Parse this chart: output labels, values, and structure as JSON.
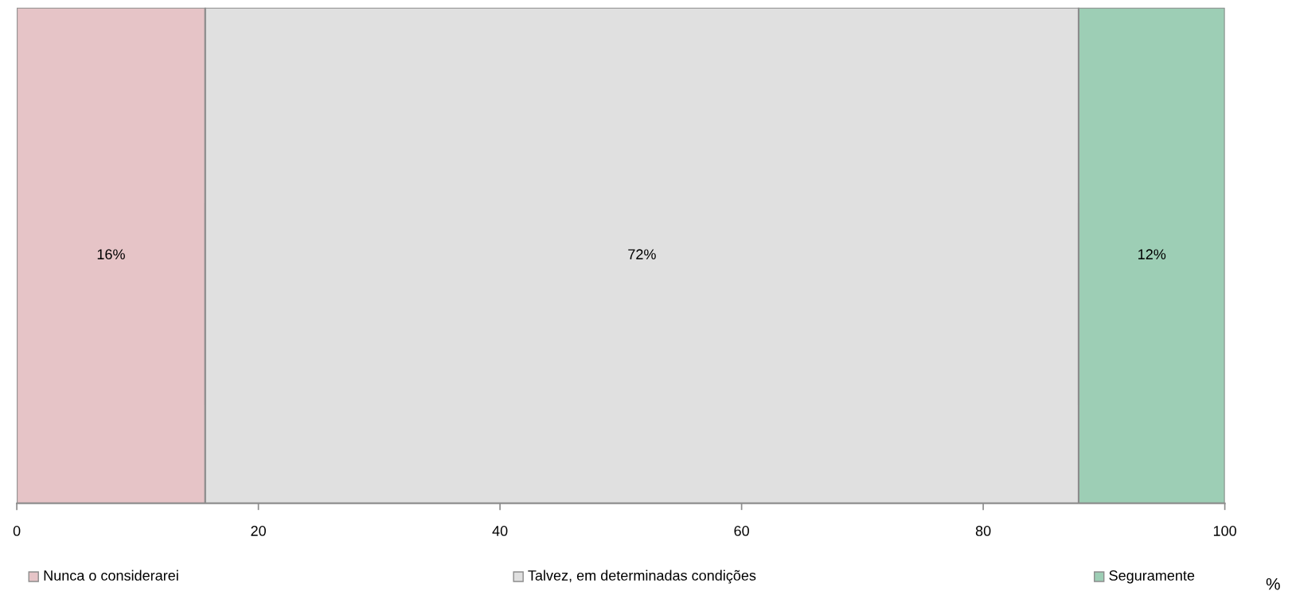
{
  "chart_data": {
    "type": "bar",
    "orientation": "horizontal",
    "stacked": true,
    "categories": [
      null
    ],
    "series": [
      {
        "name": "Nunca o considerarei",
        "color": "#e6c4c7",
        "values": [
          15.6
        ],
        "value_labels": [
          "16%"
        ]
      },
      {
        "name": "Talvez, em determinadas condições",
        "color": "#e0e0e0",
        "values": [
          72.3
        ],
        "value_labels": [
          "72%"
        ]
      },
      {
        "name": "Seguramente",
        "color": "#9dceb5",
        "values": [
          12.1
        ],
        "value_labels": [
          "12%"
        ]
      }
    ],
    "xlabel": "%",
    "xlim": [
      0,
      100
    ],
    "xticks": [
      0,
      20,
      40,
      60,
      80,
      100
    ],
    "tick_labels": "x",
    "grid": false,
    "legend": "bottom"
  }
}
